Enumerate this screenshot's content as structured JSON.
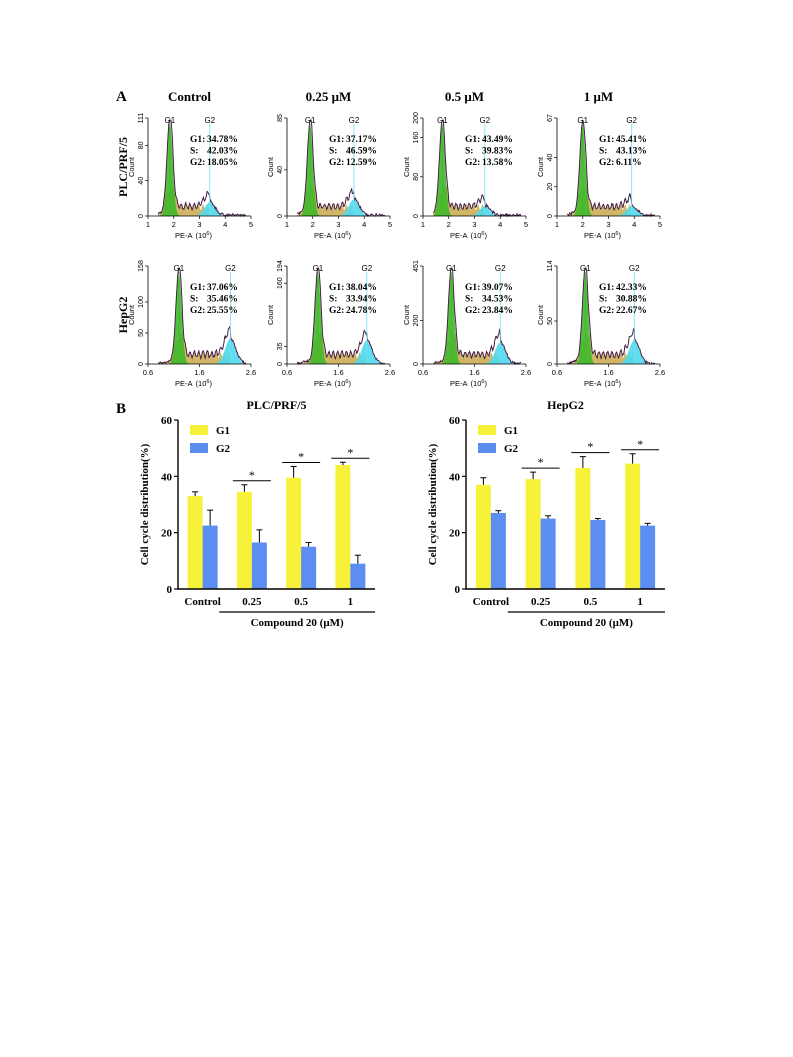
{
  "figure": {
    "panel_a_label": "A",
    "panel_b_label": "B"
  },
  "colors": {
    "g1": "#f7f13a",
    "g2": "#5b8ef0",
    "hist_g1_fill": "#3fb82a",
    "hist_g2_fill": "#4fd9ee",
    "hist_s_fill": "#c9a94c",
    "fit_line": "#8a2f8a",
    "marker_line": "#6fe3f0"
  },
  "panel_a": {
    "column_titles": [
      "Control",
      "0.25 μM",
      "0.5 μM",
      "1 μM"
    ],
    "row_labels": [
      "PLC/PRF/5",
      "HepG2"
    ],
    "ylabel": "Count",
    "xlabel": "PE-A",
    "xlabel_unit": "(10",
    "xlabel_exp": "6",
    "xlabel_close": ")",
    "peak_labels": [
      "G1",
      "G2"
    ],
    "rows": [
      {
        "x_ticks": [
          "1",
          "2",
          "3",
          "4",
          "5"
        ],
        "x_range": [
          1,
          5
        ],
        "panels": [
          {
            "ymax": "111",
            "yticks": [
              "0",
              "40",
              "80",
              "111"
            ],
            "ymax_val": 111,
            "g1_pos": 1.85,
            "g2_pos": 3.4,
            "g1_height": 0.95,
            "g2_height": 0.14,
            "stats": [
              [
                "G1:",
                "34.78%"
              ],
              [
                "S:",
                "42.03%"
              ],
              [
                "G2:",
                "18.05%"
              ]
            ]
          },
          {
            "ymax": "85",
            "yticks": [
              "0",
              "40",
              "85"
            ],
            "ymax_val": 85,
            "g1_pos": 1.9,
            "g2_pos": 3.6,
            "g1_height": 0.92,
            "g2_height": 0.17,
            "stats": [
              [
                "G1:",
                "37.17%"
              ],
              [
                "S:",
                "46.59%"
              ],
              [
                "G2:",
                "12.59%"
              ]
            ]
          },
          {
            "ymax": "200",
            "yticks": [
              "0",
              "80",
              "160",
              "200"
            ],
            "ymax_val": 200,
            "g1_pos": 1.75,
            "g2_pos": 3.4,
            "g1_height": 0.93,
            "g2_height": 0.1,
            "stats": [
              [
                "G1:",
                "43.49%"
              ],
              [
                "S:",
                "39.83%"
              ],
              [
                "G2:",
                "13.58%"
              ]
            ]
          },
          {
            "ymax": "67",
            "yticks": [
              "0",
              "20",
              "40",
              "67"
            ],
            "ymax_val": 67,
            "g1_pos": 2.0,
            "g2_pos": 3.9,
            "g1_height": 0.92,
            "g2_height": 0.1,
            "stats": [
              [
                "G1:",
                "45.41%"
              ],
              [
                "S:",
                "43.13%"
              ],
              [
                "G2:",
                "6.11%"
              ]
            ]
          }
        ]
      },
      {
        "x_ticks": [
          "0.6",
          "1.6",
          "2.6"
        ],
        "x_range": [
          0.6,
          2.6
        ],
        "panels": [
          {
            "ymax": "158",
            "yticks": [
              "0",
              "50",
              "100",
              "158"
            ],
            "ymax_val": 158,
            "g1_pos": 1.2,
            "g2_pos": 2.2,
            "g1_height": 0.93,
            "g2_height": 0.26,
            "stats": [
              [
                "G1:",
                "37.06%"
              ],
              [
                "S:",
                "35.46%"
              ],
              [
                "G2:",
                "25.55%"
              ]
            ]
          },
          {
            "ymax": "194",
            "yticks": [
              "0",
              "35",
              "160",
              "194"
            ],
            "ymax_val": 194,
            "g1_pos": 1.2,
            "g2_pos": 2.15,
            "g1_height": 0.93,
            "g2_height": 0.24,
            "stats": [
              [
                "G1:",
                "38.04%"
              ],
              [
                "S:",
                "33.94%"
              ],
              [
                "G2:",
                "24.78%"
              ]
            ]
          },
          {
            "ymax": "451",
            "yticks": [
              "0",
              "200",
              "451"
            ],
            "ymax_val": 451,
            "g1_pos": 1.15,
            "g2_pos": 2.1,
            "g1_height": 0.93,
            "g2_height": 0.22,
            "stats": [
              [
                "G1:",
                "39.07%"
              ],
              [
                "S:",
                "34.53%"
              ],
              [
                "G2:",
                "23.84%"
              ]
            ]
          },
          {
            "ymax": "114",
            "yticks": [
              "0",
              "50",
              "114"
            ],
            "ymax_val": 114,
            "g1_pos": 1.15,
            "g2_pos": 2.1,
            "g1_height": 0.93,
            "g2_height": 0.24,
            "stats": [
              [
                "G1:",
                "42.33%"
              ],
              [
                "S:",
                "30.88%"
              ],
              [
                "G2:",
                "22.67%"
              ]
            ]
          }
        ]
      }
    ]
  },
  "chart_data": [
    {
      "type": "bar",
      "title": "PLC/PRF/5",
      "ylabel": "Cell cycle distribution(%)",
      "xlabel": "Compound 20 (μM)",
      "categories": [
        "Control",
        "0.25",
        "0.5",
        "1"
      ],
      "ylim": [
        0,
        60
      ],
      "yticks": [
        "0",
        "20",
        "40",
        "60"
      ],
      "legend": "top-left",
      "series": [
        {
          "name": "G1",
          "values": [
            33,
            34.5,
            39.5,
            44
          ],
          "errors": [
            1.5,
            2.5,
            4,
            1
          ]
        },
        {
          "name": "G2",
          "values": [
            22.5,
            16.5,
            15,
            9
          ],
          "errors": [
            5.5,
            4.5,
            1.5,
            3
          ]
        }
      ],
      "significance": [
        "",
        "*",
        "*",
        "*"
      ]
    },
    {
      "type": "bar",
      "title": "HepG2",
      "ylabel": "Cell cycle distribution(%)",
      "xlabel": "Compound 20 (μM)",
      "categories": [
        "Control",
        "0.25",
        "0.5",
        "1"
      ],
      "ylim": [
        0,
        60
      ],
      "yticks": [
        "0",
        "20",
        "40",
        "60"
      ],
      "legend": "top-left",
      "series": [
        {
          "name": "G1",
          "values": [
            37,
            39,
            43,
            44.5
          ],
          "errors": [
            2.5,
            2.5,
            4,
            3.5
          ]
        },
        {
          "name": "G2",
          "values": [
            27,
            25,
            24.5,
            22.5
          ],
          "errors": [
            0.8,
            1,
            0.5,
            0.8
          ]
        }
      ],
      "significance": [
        "",
        "*",
        "*",
        "*"
      ]
    }
  ]
}
